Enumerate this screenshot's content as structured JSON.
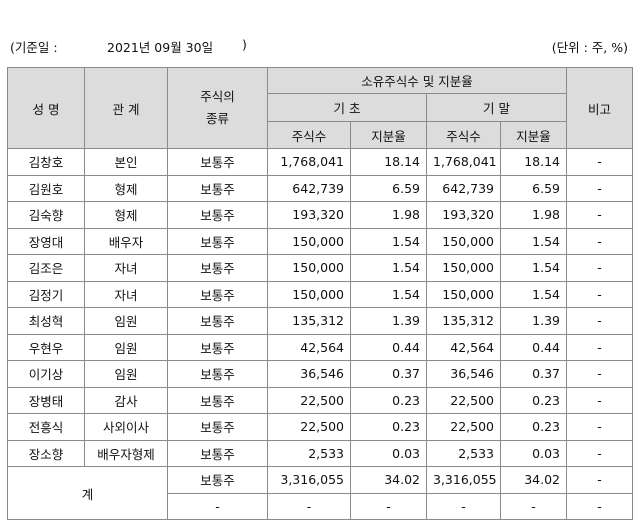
{
  "header": {
    "date_label": "(기준일 :",
    "date": "2021년 09월 30일",
    "date_close": ")",
    "unit": "(단위 : 주, %)"
  },
  "table": {
    "headers": {
      "name": "성 명",
      "relation": "관 계",
      "kind": "주식의\n종류",
      "holdings": "소유주식수 및 지분율",
      "begin": "기 초",
      "end": "기 말",
      "shares_begin": "주식수",
      "ratio_begin": "지분율",
      "shares_end": "주식수",
      "ratio_end": "지분율",
      "note": "비고"
    },
    "rows": [
      [
        "김창호",
        "본인",
        "보통주",
        "1,768,041",
        "18.14",
        "1,768,041",
        "18.14",
        "-"
      ],
      [
        "김원호",
        "형제",
        "보통주",
        "642,739",
        "6.59",
        "642,739",
        "6.59",
        "-"
      ],
      [
        "김숙향",
        "형제",
        "보통주",
        "193,320",
        "1.98",
        "193,320",
        "1.98",
        "-"
      ],
      [
        "장영대",
        "배우자",
        "보통주",
        "150,000",
        "1.54",
        "150,000",
        "1.54",
        "-"
      ],
      [
        "김조은",
        "자녀",
        "보통주",
        "150,000",
        "1.54",
        "150,000",
        "1.54",
        "-"
      ],
      [
        "김정기",
        "자녀",
        "보통주",
        "150,000",
        "1.54",
        "150,000",
        "1.54",
        "-"
      ],
      [
        "최성혁",
        "임원",
        "보통주",
        "135,312",
        "1.39",
        "135,312",
        "1.39",
        "-"
      ],
      [
        "우현우",
        "임원",
        "보통주",
        "42,564",
        "0.44",
        "42,564",
        "0.44",
        "-"
      ],
      [
        "이기상",
        "임원",
        "보통주",
        "36,546",
        "0.37",
        "36,546",
        "0.37",
        "-"
      ],
      [
        "장병태",
        "감사",
        "보통주",
        "22,500",
        "0.23",
        "22,500",
        "0.23",
        "-"
      ],
      [
        "전흥식",
        "사외이사",
        "보통주",
        "22,500",
        "0.23",
        "22,500",
        "0.23",
        "-"
      ],
      [
        "장소향",
        "배우자형제",
        "보통주",
        "2,533",
        "0.03",
        "2,533",
        "0.03",
        "-"
      ]
    ],
    "total": {
      "label": "계",
      "rows": [
        [
          "보통주",
          "3,316,055",
          "34.02",
          "3,316,055",
          "34.02",
          "-"
        ],
        [
          "-",
          "-",
          "-",
          "-",
          "-",
          "-"
        ]
      ]
    }
  }
}
